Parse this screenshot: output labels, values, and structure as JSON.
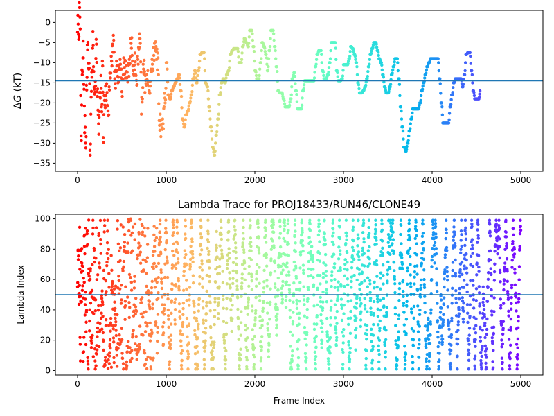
{
  "chart_data": [
    {
      "type": "scatter",
      "title": "",
      "xlabel": "",
      "ylabel": "ΔG (kT)",
      "xlim": [
        -250,
        5250
      ],
      "ylim": [
        -37,
        3
      ],
      "xticks": [
        0,
        1000,
        2000,
        3000,
        4000,
        5000
      ],
      "yticks": [
        -35,
        -30,
        -25,
        -20,
        -15,
        -10,
        -5,
        0
      ],
      "hline": -14.5,
      "hline_color": "#1f77b4",
      "colormap": "rainbow (red at frame 0 → violet at frame 5000)",
      "grid": false,
      "legend": "none",
      "series_points": [
        [
          0,
          0
        ],
        [
          10,
          -3
        ],
        [
          20,
          2.5
        ],
        [
          30,
          -1
        ],
        [
          35,
          -20
        ],
        [
          40,
          -27
        ],
        [
          50,
          -13
        ],
        [
          60,
          -7
        ],
        [
          70,
          -16
        ],
        [
          80,
          -25
        ],
        [
          90,
          -30
        ],
        [
          100,
          -18
        ],
        [
          110,
          -5
        ],
        [
          120,
          -12
        ],
        [
          130,
          -9
        ],
        [
          140,
          -33
        ],
        [
          150,
          -21
        ],
        [
          160,
          -13
        ],
        [
          170,
          -4
        ],
        [
          180,
          -11
        ],
        [
          190,
          -19
        ],
        [
          200,
          -14
        ],
        [
          210,
          -6
        ],
        [
          220,
          -16
        ],
        [
          230,
          -23
        ],
        [
          240,
          -26
        ],
        [
          250,
          -18
        ],
        [
          260,
          -15
        ],
        [
          270,
          -21
        ],
        [
          280,
          -12
        ],
        [
          290,
          -28
        ],
        [
          300,
          -20
        ],
        [
          320,
          -17
        ],
        [
          340,
          -22
        ],
        [
          360,
          -15
        ],
        [
          380,
          -9
        ],
        [
          400,
          -5
        ],
        [
          420,
          -14
        ],
        [
          440,
          -12
        ],
        [
          460,
          -13
        ],
        [
          480,
          -11
        ],
        [
          500,
          -16
        ],
        [
          520,
          -10
        ],
        [
          540,
          -12
        ],
        [
          560,
          -13
        ],
        [
          580,
          -11
        ],
        [
          600,
          -4
        ],
        [
          620,
          -12
        ],
        [
          640,
          -10
        ],
        [
          660,
          -15
        ],
        [
          680,
          -8
        ],
        [
          700,
          -4
        ],
        [
          720,
          -21
        ],
        [
          740,
          -11
        ],
        [
          760,
          -15
        ],
        [
          780,
          -13
        ],
        [
          800,
          -17
        ],
        [
          820,
          -14
        ],
        [
          840,
          -11
        ],
        [
          860,
          -7
        ],
        [
          880,
          -6
        ],
        [
          900,
          -10
        ],
        [
          920,
          -25
        ],
        [
          940,
          -26
        ],
        [
          960,
          -24
        ],
        [
          980,
          -20
        ],
        [
          1000,
          -10
        ],
        [
          1020,
          -18
        ],
        [
          1040,
          -19
        ],
        [
          1060,
          -17
        ],
        [
          1080,
          -16
        ],
        [
          1100,
          -15
        ],
        [
          1120,
          -14
        ],
        [
          1140,
          -13
        ],
        [
          1160,
          -17
        ],
        [
          1180,
          -24
        ],
        [
          1200,
          -26
        ],
        [
          1220,
          -23
        ],
        [
          1240,
          -22
        ],
        [
          1260,
          -20
        ],
        [
          1280,
          -18
        ],
        [
          1300,
          -14
        ],
        [
          1320,
          -12
        ],
        [
          1340,
          -15
        ],
        [
          1360,
          -12
        ],
        [
          1380,
          -8
        ],
        [
          1400,
          -7.5
        ],
        [
          1420,
          -7.5
        ],
        [
          1440,
          -15
        ],
        [
          1460,
          -16
        ],
        [
          1480,
          -21
        ],
        [
          1500,
          -26
        ],
        [
          1520,
          -31
        ],
        [
          1540,
          -33
        ],
        [
          1560,
          -28
        ],
        [
          1580,
          -24
        ],
        [
          1600,
          -18
        ],
        [
          1620,
          -15
        ],
        [
          1640,
          -14
        ],
        [
          1660,
          -15
        ],
        [
          1680,
          -13
        ],
        [
          1700,
          -12
        ],
        [
          1720,
          -8
        ],
        [
          1740,
          -7
        ],
        [
          1760,
          -6.5
        ],
        [
          1780,
          -6.5
        ],
        [
          1800,
          -6.5
        ],
        [
          1820,
          -10
        ],
        [
          1840,
          -10
        ],
        [
          1860,
          -6
        ],
        [
          1880,
          -4
        ],
        [
          1900,
          -5
        ],
        [
          1920,
          -6
        ],
        [
          1940,
          -2
        ],
        [
          1960,
          -2
        ],
        [
          1980,
          -6
        ],
        [
          2000,
          -12
        ],
        [
          2020,
          -14
        ],
        [
          2040,
          -14
        ],
        [
          2060,
          -10
        ],
        [
          2080,
          -5
        ],
        [
          2100,
          -6
        ],
        [
          2120,
          -8
        ],
        [
          2140,
          -12
        ],
        [
          2160,
          -7
        ],
        [
          2180,
          -2
        ],
        [
          2200,
          -2
        ],
        [
          2220,
          -6
        ],
        [
          2240,
          -11
        ],
        [
          2260,
          -17
        ],
        [
          2280,
          -17.5
        ],
        [
          2300,
          -17.5
        ],
        [
          2320,
          -19
        ],
        [
          2340,
          -21
        ],
        [
          2360,
          -21
        ],
        [
          2380,
          -21
        ],
        [
          2400,
          -19
        ],
        [
          2420,
          -14
        ],
        [
          2440,
          -12.5
        ],
        [
          2460,
          -17
        ],
        [
          2480,
          -21.5
        ],
        [
          2500,
          -21.5
        ],
        [
          2520,
          -21.5
        ],
        [
          2540,
          -17
        ],
        [
          2560,
          -14.5
        ],
        [
          2580,
          -14.5
        ],
        [
          2600,
          -14.5
        ],
        [
          2620,
          -14.5
        ],
        [
          2640,
          -14.5
        ],
        [
          2660,
          -14.5
        ],
        [
          2680,
          -11
        ],
        [
          2700,
          -8
        ],
        [
          2720,
          -7
        ],
        [
          2740,
          -7
        ],
        [
          2760,
          -12
        ],
        [
          2780,
          -14
        ],
        [
          2800,
          -14
        ],
        [
          2820,
          -13
        ],
        [
          2840,
          -10
        ],
        [
          2860,
          -5
        ],
        [
          2880,
          -5
        ],
        [
          2900,
          -5
        ],
        [
          2920,
          -12
        ],
        [
          2940,
          -14.5
        ],
        [
          2960,
          -14.5
        ],
        [
          2980,
          -14
        ],
        [
          3000,
          -10.5
        ],
        [
          3020,
          -10.5
        ],
        [
          3040,
          -10.5
        ],
        [
          3060,
          -9
        ],
        [
          3080,
          -6
        ],
        [
          3100,
          -6.5
        ],
        [
          3120,
          -8
        ],
        [
          3140,
          -10
        ],
        [
          3160,
          -15
        ],
        [
          3180,
          -17.5
        ],
        [
          3200,
          -17.5
        ],
        [
          3220,
          -17
        ],
        [
          3240,
          -16
        ],
        [
          3260,
          -14
        ],
        [
          3280,
          -11
        ],
        [
          3300,
          -8
        ],
        [
          3320,
          -6.5
        ],
        [
          3340,
          -5
        ],
        [
          3360,
          -5
        ],
        [
          3380,
          -7
        ],
        [
          3400,
          -9
        ],
        [
          3420,
          -10
        ],
        [
          3440,
          -13
        ],
        [
          3460,
          -16
        ],
        [
          3480,
          -17.5
        ],
        [
          3500,
          -17.5
        ],
        [
          3520,
          -16
        ],
        [
          3540,
          -13
        ],
        [
          3560,
          -11
        ],
        [
          3580,
          -9
        ],
        [
          3600,
          -9
        ],
        [
          3620,
          -14
        ],
        [
          3640,
          -21
        ],
        [
          3660,
          -26
        ],
        [
          3680,
          -31
        ],
        [
          3700,
          -32
        ],
        [
          3720,
          -30
        ],
        [
          3740,
          -27
        ],
        [
          3760,
          -24
        ],
        [
          3780,
          -21.5
        ],
        [
          3800,
          -21.5
        ],
        [
          3820,
          -21.5
        ],
        [
          3840,
          -21.5
        ],
        [
          3860,
          -20
        ],
        [
          3880,
          -17
        ],
        [
          3900,
          -15
        ],
        [
          3920,
          -13
        ],
        [
          3940,
          -11
        ],
        [
          3960,
          -10
        ],
        [
          3980,
          -9
        ],
        [
          4000,
          -9
        ],
        [
          4020,
          -9
        ],
        [
          4040,
          -9
        ],
        [
          4060,
          -9
        ],
        [
          4080,
          -14
        ],
        [
          4100,
          -20
        ],
        [
          4120,
          -25
        ],
        [
          4140,
          -25
        ],
        [
          4160,
          -25
        ],
        [
          4180,
          -25
        ],
        [
          4200,
          -21
        ],
        [
          4220,
          -18
        ],
        [
          4240,
          -15
        ],
        [
          4260,
          -14
        ],
        [
          4280,
          -14
        ],
        [
          4300,
          -14
        ],
        [
          4320,
          -14
        ],
        [
          4340,
          -16
        ],
        [
          4360,
          -13
        ],
        [
          4380,
          -8
        ],
        [
          4400,
          -7.5
        ],
        [
          4420,
          -7.5
        ],
        [
          4440,
          -12
        ],
        [
          4460,
          -17
        ],
        [
          4480,
          -19
        ],
        [
          4500,
          -19
        ],
        [
          4520,
          -19
        ],
        [
          4540,
          -17
        ]
      ],
      "colorbar": "none"
    },
    {
      "type": "scatter",
      "title": "Lambda Trace for PROJ18433/RUN46/CLONE49",
      "xlabel": "Frame Index",
      "ylabel": "Lambda Index",
      "xlim": [
        -250,
        5250
      ],
      "ylim": [
        -3,
        103
      ],
      "xticks": [
        0,
        1000,
        2000,
        3000,
        4000,
        5000
      ],
      "yticks": [
        0,
        20,
        40,
        60,
        80,
        100
      ],
      "hline": 50,
      "hline_color": "#1f77b4",
      "colormap": "rainbow (red at frame 0 → violet at frame 5000)",
      "grid": false,
      "legend": "none",
      "description_values": "lambda index values sampled roughly uniformly between 0 and 100 across frames 0–5000"
    }
  ]
}
